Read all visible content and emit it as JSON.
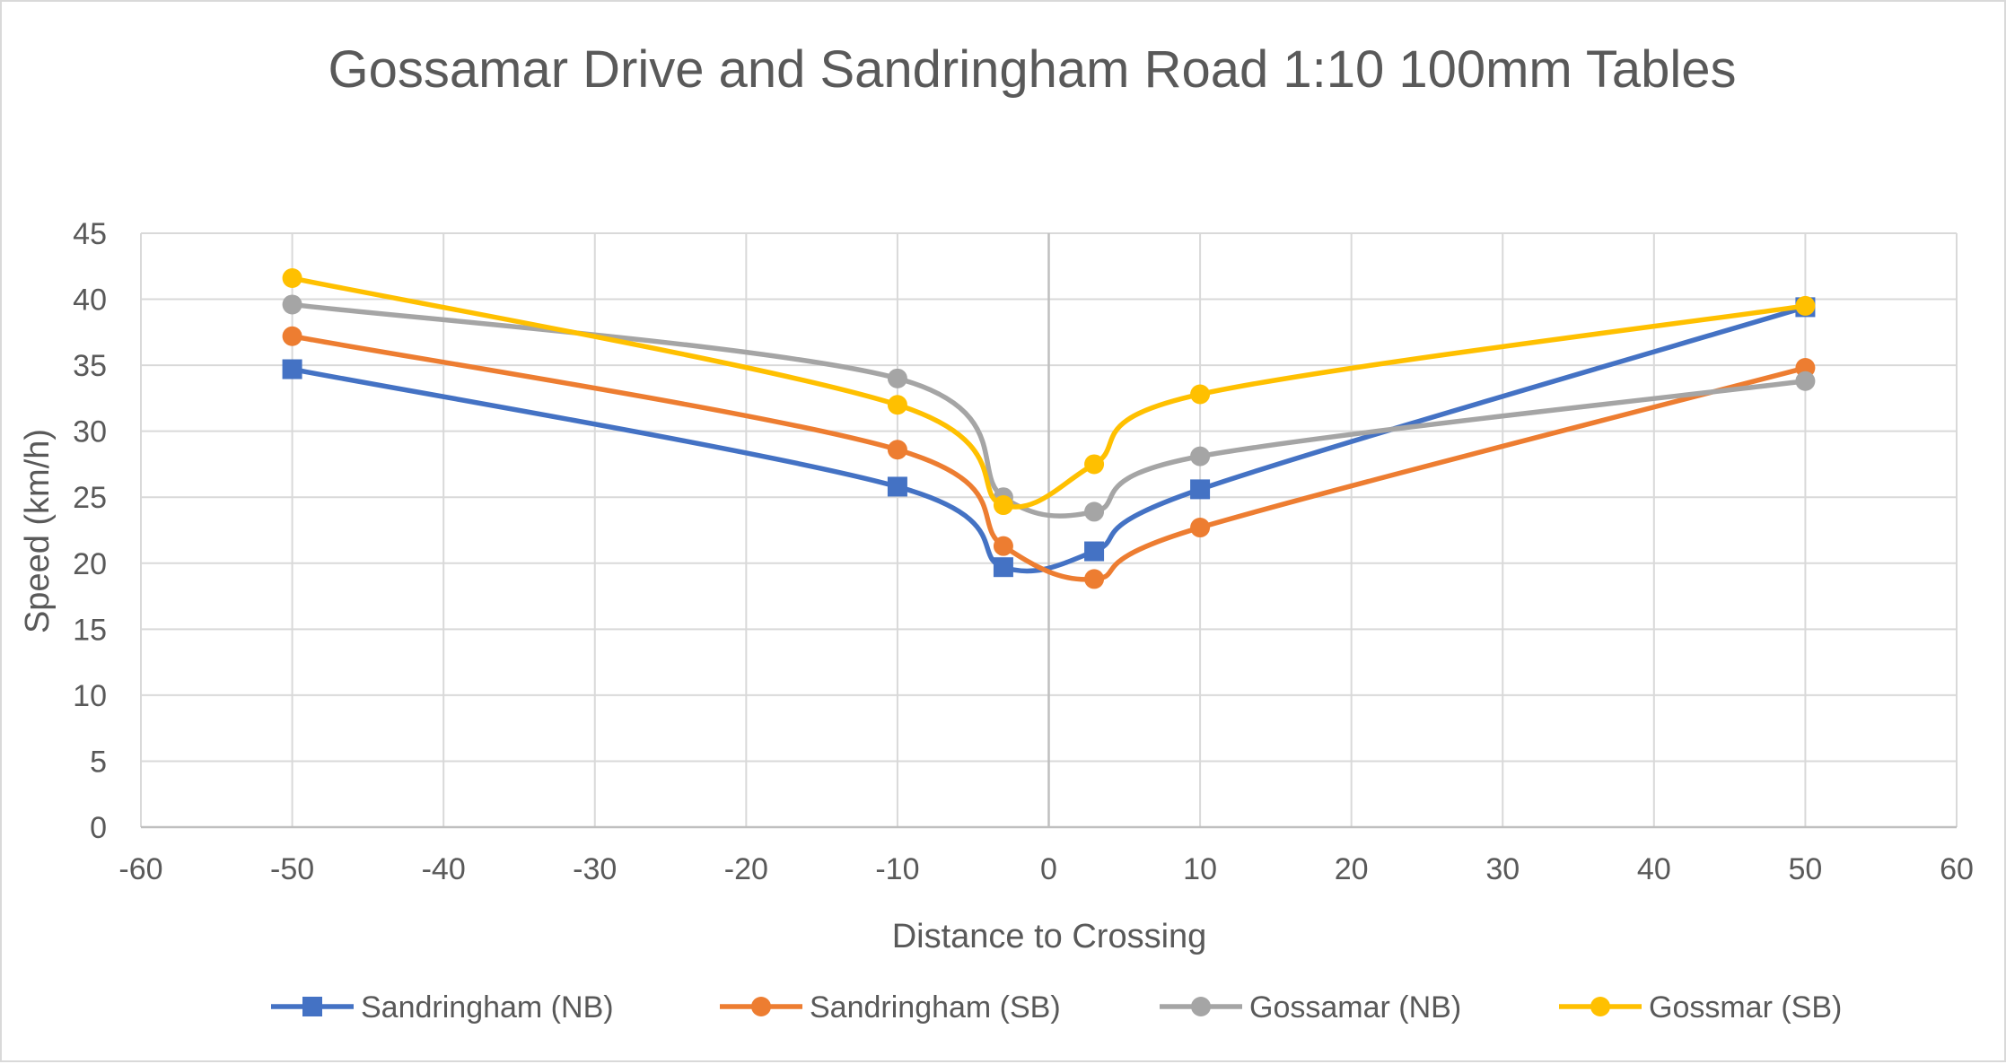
{
  "chart_data": {
    "type": "line",
    "smooth": true,
    "title": "Gossamar Drive and Sandringham Road 1:10 100mm Tables",
    "xlabel": "Distance to Crossing",
    "ylabel": "Speed (km/h)",
    "xlim": [
      -60,
      60
    ],
    "ylim": [
      0,
      45
    ],
    "xticks": [
      -60,
      -50,
      -40,
      -30,
      -20,
      -10,
      0,
      10,
      20,
      30,
      40,
      50,
      60
    ],
    "yticks": [
      0,
      5,
      10,
      15,
      20,
      25,
      30,
      35,
      40,
      45
    ],
    "grid": true,
    "legend_position": "bottom",
    "x": [
      -50,
      -10,
      -3,
      3,
      10,
      50
    ],
    "series": [
      {
        "name": "Sandringham (NB)",
        "color": "#4472C4",
        "marker": "square",
        "values": [
          34.7,
          25.8,
          19.7,
          20.9,
          25.6,
          39.4
        ]
      },
      {
        "name": "Sandringham (SB)",
        "color": "#ED7D31",
        "marker": "circle",
        "values": [
          37.2,
          28.6,
          21.3,
          18.8,
          22.7,
          34.8
        ]
      },
      {
        "name": "Gossamar (NB)",
        "color": "#A5A5A5",
        "marker": "circle",
        "values": [
          39.6,
          34.0,
          25.0,
          23.9,
          28.1,
          33.8
        ]
      },
      {
        "name": "Gossmar (SB)",
        "color": "#FFC000",
        "marker": "circle",
        "values": [
          41.6,
          32.0,
          24.4,
          27.5,
          32.8,
          39.5
        ]
      }
    ]
  }
}
